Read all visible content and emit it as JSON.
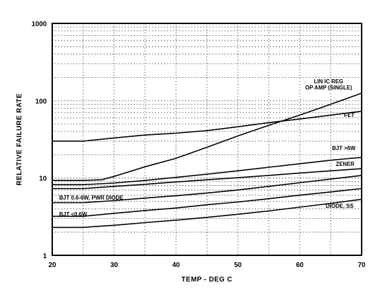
{
  "chart_data": {
    "type": "line",
    "xlabel": "TEMP - DEG C",
    "ylabel": "RELATIVE FAILURE RATE",
    "xlim": [
      20,
      70
    ],
    "ylim": [
      1,
      1000
    ],
    "yscale": "log",
    "grid": true,
    "x_ticks": [
      "20",
      "30",
      "40",
      "50",
      "60",
      "70"
    ],
    "y_ticks": [
      "1",
      "10",
      "100",
      "1000"
    ],
    "series": [
      {
        "name": "LIN IC REG OP AMP (SINGLE)",
        "x": [
          20,
          25,
          28,
          30,
          35,
          40,
          45,
          50,
          55,
          60,
          65,
          70
        ],
        "y": [
          9.3,
          9.3,
          9.5,
          10.5,
          14,
          18,
          25,
          35,
          48,
          65,
          90,
          125
        ]
      },
      {
        "name": "FET",
        "x": [
          20,
          25,
          30,
          35,
          40,
          45,
          50,
          55,
          60,
          65,
          70
        ],
        "y": [
          30,
          30,
          33,
          36,
          38,
          41,
          46,
          52,
          58,
          65,
          73
        ]
      },
      {
        "name": "BJT >6W",
        "x": [
          20,
          25,
          30,
          35,
          40,
          45,
          50,
          55,
          60,
          65,
          70
        ],
        "y": [
          8.2,
          8.2,
          8.6,
          9.3,
          10.2,
          11.2,
          12.4,
          13.8,
          15.3,
          17,
          18.5
        ]
      },
      {
        "name": "ZENER",
        "x": [
          20,
          25,
          30,
          35,
          40,
          45,
          50,
          55,
          60,
          65,
          70
        ],
        "y": [
          7.3,
          7.3,
          7.8,
          8.3,
          8.9,
          9.5,
          10.1,
          10.8,
          11.6,
          12.4,
          13.2
        ]
      },
      {
        "name": "BJT 0.6-6W, PWR DIODE",
        "x": [
          20,
          25,
          30,
          35,
          40,
          45,
          50,
          55,
          60,
          65,
          70
        ],
        "y": [
          4.8,
          4.8,
          5.1,
          5.5,
          5.9,
          6.4,
          7,
          7.8,
          8.7,
          9.7,
          10.8
        ]
      },
      {
        "name": "BJT <0.6W",
        "x": [
          20,
          25,
          30,
          35,
          40,
          45,
          50,
          55,
          60,
          65,
          70
        ],
        "y": [
          3.2,
          3.2,
          3.5,
          3.8,
          4.1,
          4.5,
          4.9,
          5.4,
          6,
          6.6,
          7.3
        ]
      },
      {
        "name": "DIODE, SS",
        "x": [
          20,
          25,
          30,
          35,
          40,
          45,
          50,
          55,
          60,
          65,
          70
        ],
        "y": [
          2.3,
          2.3,
          2.45,
          2.65,
          2.85,
          3.1,
          3.4,
          3.75,
          4.2,
          4.7,
          5.3
        ]
      }
    ],
    "series_labels": {
      "LIN IC REG OP AMP (SINGLE)": [
        "LIN IC REG",
        "OP AMP (SINGLE)"
      ],
      "FET": [
        "FET"
      ],
      "BJT >6W": [
        "BJT >6W"
      ],
      "ZENER": [
        "ZENER"
      ],
      "BJT 0.6-6W, PWR DIODE": [
        "BJT 0.6-6W, PWR DIODE"
      ],
      "BJT <0.6W": [
        "BJT <0.6W"
      ],
      "DIODE, SS": [
        "DIODE, SS"
      ]
    }
  }
}
